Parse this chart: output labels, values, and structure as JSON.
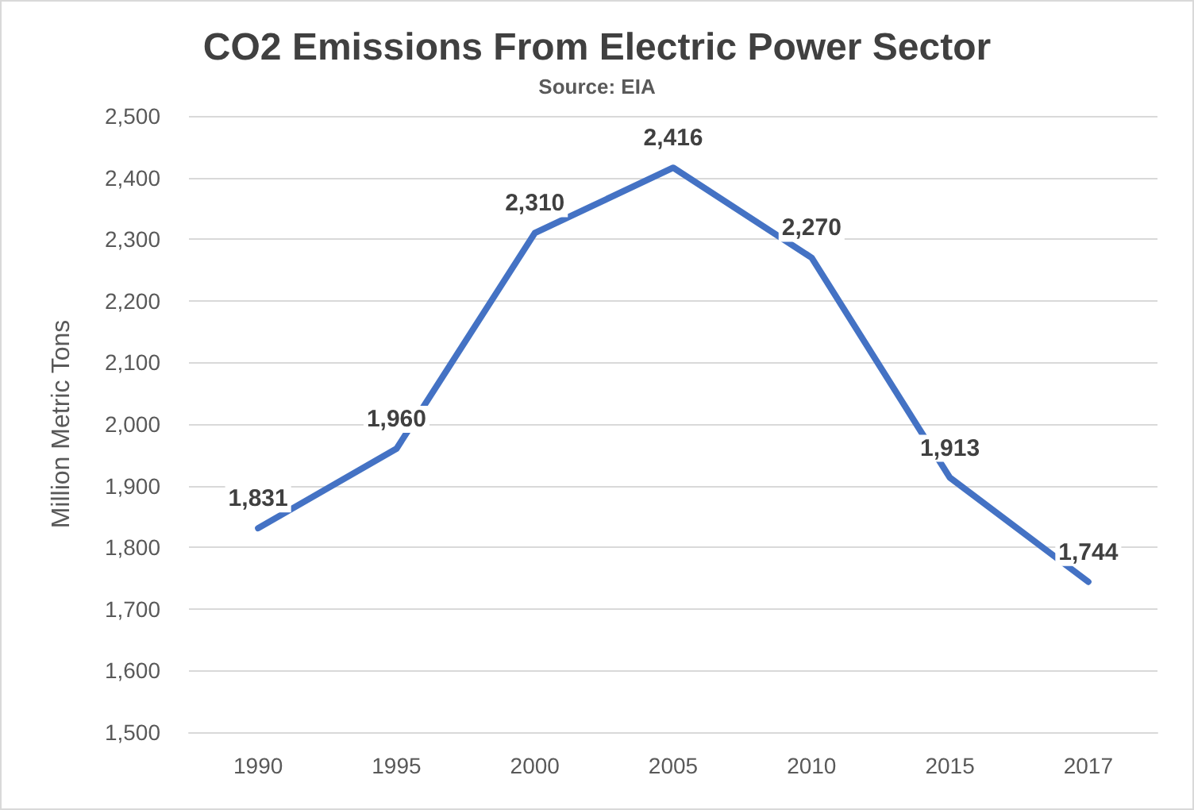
{
  "chart_data": {
    "type": "line",
    "title": "CO2 Emissions From Electric Power Sector",
    "subtitle": "Source: EIA",
    "ylabel": "Million Metric Tons",
    "categories": [
      "1990",
      "1995",
      "2000",
      "2005",
      "2010",
      "2015",
      "2017"
    ],
    "series": [
      {
        "color": "#4472c4",
        "values": [
          1831,
          1960,
          2310,
          2416,
          2270,
          1913,
          1744
        ],
        "value_labels": [
          "1,831",
          "1,960",
          "2,310",
          "2,416",
          "2,270",
          "1,913",
          "1,744"
        ]
      }
    ],
    "ylim": [
      1500,
      2500
    ],
    "yticks": [
      {
        "value": 1500,
        "label": "1,500"
      },
      {
        "value": 1600,
        "label": "1,600"
      },
      {
        "value": 1700,
        "label": "1,700"
      },
      {
        "value": 1800,
        "label": "1,800"
      },
      {
        "value": 1900,
        "label": "1,900"
      },
      {
        "value": 2000,
        "label": "2,000"
      },
      {
        "value": 2100,
        "label": "2,100"
      },
      {
        "value": 2200,
        "label": "2,200"
      },
      {
        "value": 2300,
        "label": "2,300"
      },
      {
        "value": 2400,
        "label": "2,400"
      },
      {
        "value": 2500,
        "label": "2,500"
      }
    ],
    "grid": "y",
    "marker": "none",
    "line_style": "solid"
  }
}
